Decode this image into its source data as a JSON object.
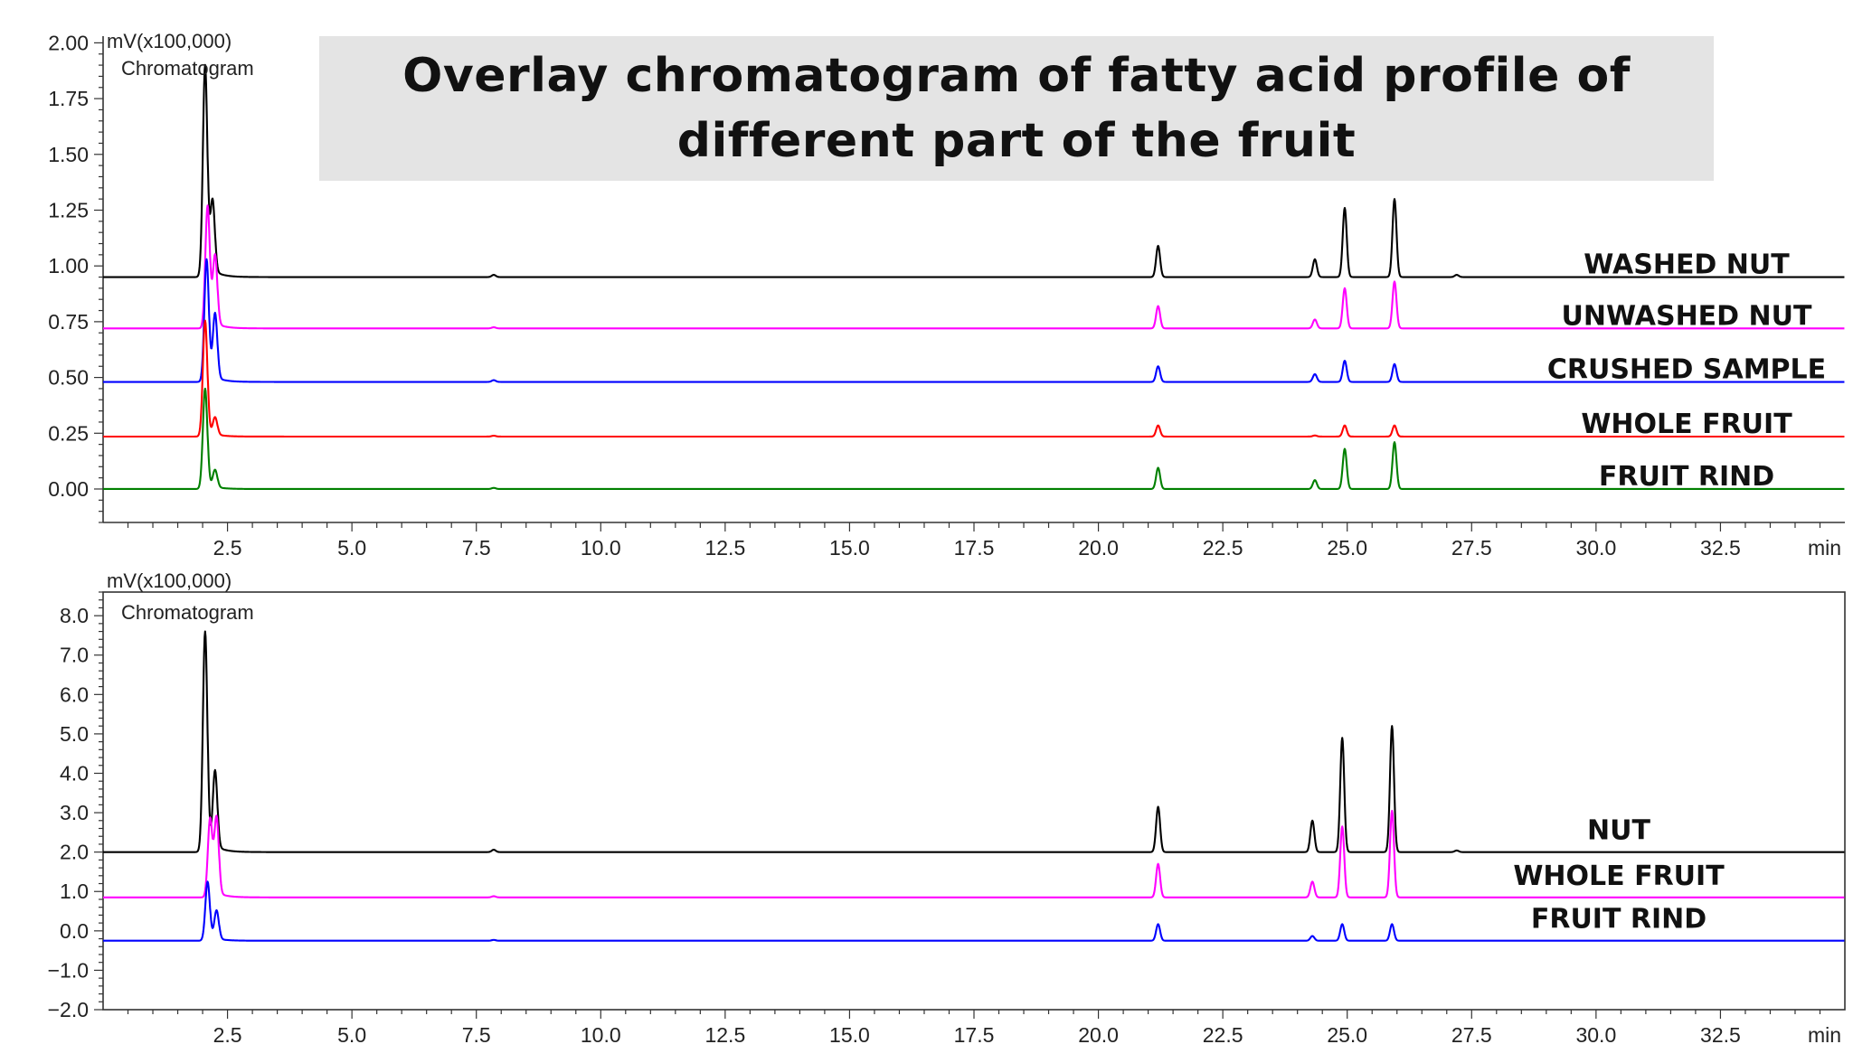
{
  "title": {
    "line1": "Overlay chromatogram of fatty acid profile of",
    "line2": "different part of the fruit"
  },
  "chart_data": [
    {
      "type": "line",
      "title": "Chromatogram",
      "ylabel": "mV(x100,000)",
      "xlabel": "min",
      "xlim": [
        0,
        35
      ],
      "ylim": [
        -0.15,
        2.03
      ],
      "x_ticks": [
        2.5,
        5.0,
        7.5,
        10.0,
        12.5,
        15.0,
        17.5,
        20.0,
        22.5,
        25.0,
        27.5,
        30.0,
        32.5
      ],
      "x_tick_labels": [
        "2.5",
        "5.0",
        "7.5",
        "10.0",
        "12.5",
        "15.0",
        "17.5",
        "20.0",
        "22.5",
        "25.0",
        "27.5",
        "30.0",
        "32.5"
      ],
      "y_ticks": [
        0.0,
        0.25,
        0.5,
        0.75,
        1.0,
        1.25,
        1.5,
        1.75,
        2.0
      ],
      "y_tick_labels": [
        "0.00",
        "0.25",
        "0.50",
        "0.75",
        "1.00",
        "1.25",
        "1.50",
        "1.75",
        "2.00"
      ],
      "box": "axes-left-bottom",
      "series": [
        {
          "name": "WASHED NUT",
          "color": "#000000",
          "baseline": 0.95,
          "peaks": [
            [
              2.05,
              0.95
            ],
            [
              2.2,
              0.33
            ],
            [
              7.85,
              0.01
            ],
            [
              21.2,
              0.14
            ],
            [
              24.35,
              0.08
            ],
            [
              24.95,
              0.31
            ],
            [
              25.95,
              0.35
            ],
            [
              27.2,
              0.01
            ]
          ]
        },
        {
          "name": "UNWASHED NUT",
          "color": "#ff00ff",
          "baseline": 0.72,
          "peaks": [
            [
              2.1,
              0.55
            ],
            [
              2.25,
              0.32
            ],
            [
              7.85,
              0.005
            ],
            [
              21.2,
              0.1
            ],
            [
              24.35,
              0.04
            ],
            [
              24.95,
              0.18
            ],
            [
              25.95,
              0.21
            ]
          ]
        },
        {
          "name": "CRUSHED SAMPLE",
          "color": "#0000ff",
          "baseline": 0.48,
          "peaks": [
            [
              2.08,
              0.55
            ],
            [
              2.25,
              0.3
            ],
            [
              7.85,
              0.008
            ],
            [
              21.2,
              0.07
            ],
            [
              24.35,
              0.035
            ],
            [
              24.95,
              0.095
            ],
            [
              25.95,
              0.08
            ]
          ]
        },
        {
          "name": "WHOLE FRUIT",
          "color": "#ff0000",
          "baseline": 0.235,
          "peaks": [
            [
              2.05,
              0.52
            ],
            [
              2.25,
              0.08
            ],
            [
              7.85,
              0.004
            ],
            [
              21.2,
              0.05
            ],
            [
              24.35,
              0.005
            ],
            [
              24.95,
              0.05
            ],
            [
              25.95,
              0.05
            ]
          ]
        },
        {
          "name": "FRUIT RIND",
          "color": "#008000",
          "baseline": 0.0,
          "peaks": [
            [
              2.05,
              0.45
            ],
            [
              2.25,
              0.08
            ],
            [
              7.85,
              0.005
            ],
            [
              21.2,
              0.095
            ],
            [
              24.35,
              0.04
            ],
            [
              24.95,
              0.18
            ],
            [
              25.95,
              0.21
            ]
          ]
        }
      ]
    },
    {
      "type": "line",
      "title": "Chromatogram",
      "ylabel": "mV(x100,000)",
      "xlabel": "min",
      "xlim": [
        0,
        35
      ],
      "ylim": [
        -2.0,
        8.6
      ],
      "x_ticks": [
        2.5,
        5.0,
        7.5,
        10.0,
        12.5,
        15.0,
        17.5,
        20.0,
        22.5,
        25.0,
        27.5,
        30.0,
        32.5
      ],
      "x_tick_labels": [
        "2.5",
        "5.0",
        "7.5",
        "10.0",
        "12.5",
        "15.0",
        "17.5",
        "20.0",
        "22.5",
        "25.0",
        "27.5",
        "30.0",
        "32.5"
      ],
      "y_ticks": [
        -2.0,
        -1.0,
        0.0,
        1.0,
        2.0,
        3.0,
        4.0,
        5.0,
        6.0,
        7.0,
        8.0
      ],
      "y_tick_labels": [
        "−2.0",
        "−1.0",
        "0.0",
        "1.0",
        "2.0",
        "3.0",
        "4.0",
        "5.0",
        "6.0",
        "7.0",
        "8.0"
      ],
      "box": "full",
      "series": [
        {
          "name": "NUT",
          "color": "#000000",
          "baseline": 2.0,
          "peaks": [
            [
              2.05,
              5.6
            ],
            [
              2.25,
              2.0
            ],
            [
              7.85,
              0.06
            ],
            [
              21.2,
              1.15
            ],
            [
              24.3,
              0.8
            ],
            [
              24.9,
              2.9
            ],
            [
              25.9,
              3.2
            ],
            [
              27.2,
              0.04
            ]
          ]
        },
        {
          "name": "WHOLE FRUIT",
          "color": "#ff00ff",
          "baseline": 0.85,
          "peaks": [
            [
              2.15,
              2.0
            ],
            [
              2.28,
              2.0
            ],
            [
              7.85,
              0.03
            ],
            [
              21.2,
              0.85
            ],
            [
              24.3,
              0.4
            ],
            [
              24.9,
              1.8
            ],
            [
              25.9,
              2.2
            ]
          ]
        },
        {
          "name": "FRUIT RIND",
          "color": "#0000ff",
          "baseline": -0.25,
          "peaks": [
            [
              2.1,
              1.5
            ],
            [
              2.28,
              0.75
            ],
            [
              7.85,
              0.02
            ],
            [
              21.2,
              0.42
            ],
            [
              24.3,
              0.12
            ],
            [
              24.9,
              0.42
            ],
            [
              25.9,
              0.42
            ]
          ]
        }
      ]
    }
  ]
}
